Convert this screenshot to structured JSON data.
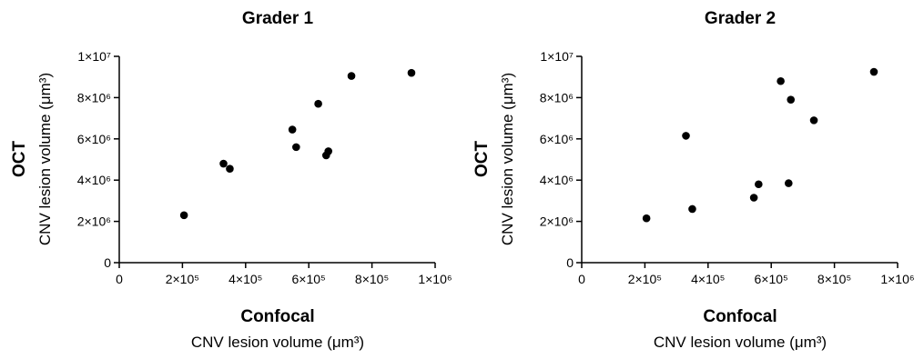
{
  "chart_data": [
    {
      "type": "scatter",
      "title": "Grader 1",
      "xlabel": "Confocal",
      "xlabel_sub": "CNV lesion volume (μm³)",
      "ylabel": "OCT",
      "ylabel_sub": "CNV lesion volume (μm³)",
      "xlim": [
        0,
        1000000
      ],
      "ylim": [
        0,
        10000000
      ],
      "x_ticks": [
        0,
        200000,
        400000,
        600000,
        800000,
        1000000
      ],
      "x_tick_labels": [
        "0",
        "2×10⁵",
        "4×10⁵",
        "6×10⁵",
        "8×10⁵",
        "1×10⁶"
      ],
      "y_ticks": [
        0,
        2000000,
        4000000,
        6000000,
        8000000,
        10000000
      ],
      "y_tick_labels": [
        "0",
        "2×10⁶",
        "4×10⁶",
        "6×10⁶",
        "8×10⁶",
        "1×10⁷"
      ],
      "color": "#000000",
      "points": [
        {
          "x": 205000,
          "y": 2300000
        },
        {
          "x": 330000,
          "y": 4800000
        },
        {
          "x": 350000,
          "y": 4550000
        },
        {
          "x": 548000,
          "y": 6450000
        },
        {
          "x": 560000,
          "y": 5600000
        },
        {
          "x": 630000,
          "y": 7700000
        },
        {
          "x": 655000,
          "y": 5200000
        },
        {
          "x": 662000,
          "y": 5400000
        },
        {
          "x": 735000,
          "y": 9050000
        },
        {
          "x": 925000,
          "y": 9200000
        }
      ]
    },
    {
      "type": "scatter",
      "title": "Grader 2",
      "xlabel": "Confocal",
      "xlabel_sub": "CNV lesion volume (μm³)",
      "ylabel": "OCT",
      "ylabel_sub": "CNV lesion volume (μm³)",
      "xlim": [
        0,
        1000000
      ],
      "ylim": [
        0,
        10000000
      ],
      "x_ticks": [
        0,
        200000,
        400000,
        600000,
        800000,
        1000000
      ],
      "x_tick_labels": [
        "0",
        "2×10⁵",
        "4×10⁵",
        "6×10⁵",
        "8×10⁵",
        "1×10⁶"
      ],
      "y_ticks": [
        0,
        2000000,
        4000000,
        6000000,
        8000000,
        10000000
      ],
      "y_tick_labels": [
        "0",
        "2×10⁶",
        "4×10⁶",
        "6×10⁶",
        "8×10⁶",
        "1×10⁷"
      ],
      "color": "#000000",
      "points": [
        {
          "x": 205000,
          "y": 2150000
        },
        {
          "x": 330000,
          "y": 6150000
        },
        {
          "x": 350000,
          "y": 2600000
        },
        {
          "x": 545000,
          "y": 3150000
        },
        {
          "x": 560000,
          "y": 3800000
        },
        {
          "x": 630000,
          "y": 8800000
        },
        {
          "x": 655000,
          "y": 3850000
        },
        {
          "x": 662000,
          "y": 7900000
        },
        {
          "x": 735000,
          "y": 6900000
        },
        {
          "x": 925000,
          "y": 9250000
        }
      ]
    }
  ]
}
